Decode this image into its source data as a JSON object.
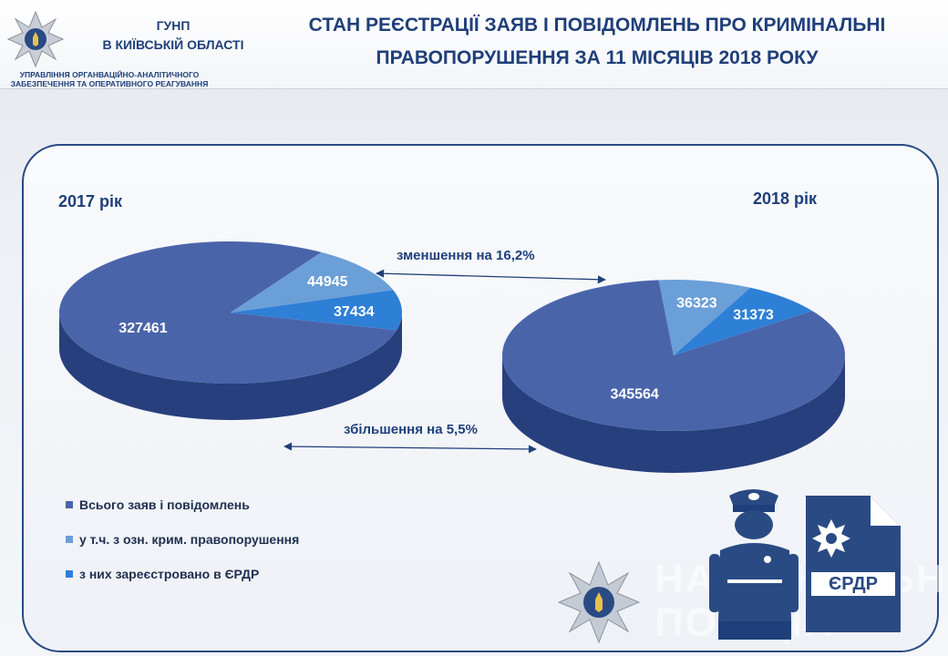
{
  "header": {
    "org_line1": "ГУНП",
    "org_line2": "В КИЇВСЬКІЙ ОБЛАСТІ",
    "dept_line1": "УПРАВЛІННЯ ОРГАНВАЦІЙНО-АНАЛІТИЧНОГО",
    "dept_line2": "ЗАБЕЗПЕЧЕННЯ ТА ОПЕРАТИВНОГО РЕАГУВАННЯ",
    "title_line1": "СТАН РЕЄСТРАЦІЇ ЗАЯВ І ПОВІДОМЛЕНЬ ПРО КРИМІНАЛЬНІ",
    "title_line2": "ПРАВОПОРУШЕННЯ  ЗА 11 МІСЯЦІВ 2018 РОКУ"
  },
  "chart_data": {
    "type": "pie",
    "categories": [
      "Всього заяв і повідомлень",
      "у т.ч. з озн. крим. правопорушення",
      "з них зареєстровано в ЄРДР"
    ],
    "series": [
      {
        "name": "2017 рік",
        "values": [
          327461,
          44945,
          37434
        ]
      },
      {
        "name": "2018 рік",
        "values": [
          345564,
          36323,
          31373
        ]
      }
    ],
    "colors": [
      "#4a64aa",
      "#6a9fd8",
      "#2e7fd6"
    ],
    "legend_position": "bottom-left",
    "annotations": [
      "зменшення  на 16,2%",
      "збільшення  на 5,5%"
    ]
  },
  "legend": [
    {
      "label": "Всього заяв і повідомлень",
      "color": "#4a64aa"
    },
    {
      "label": "у т.ч. з озн. крим. правопорушення",
      "color": "#6a9fd8"
    },
    {
      "label": "з них зареєстровано в ЄРДР",
      "color": "#2e7fd6"
    }
  ],
  "badge_text": "ЄРДР",
  "watermark_line1": "НАЦІОНАЛЬНА",
  "watermark_line2": "ПОЛІЦІЯ"
}
